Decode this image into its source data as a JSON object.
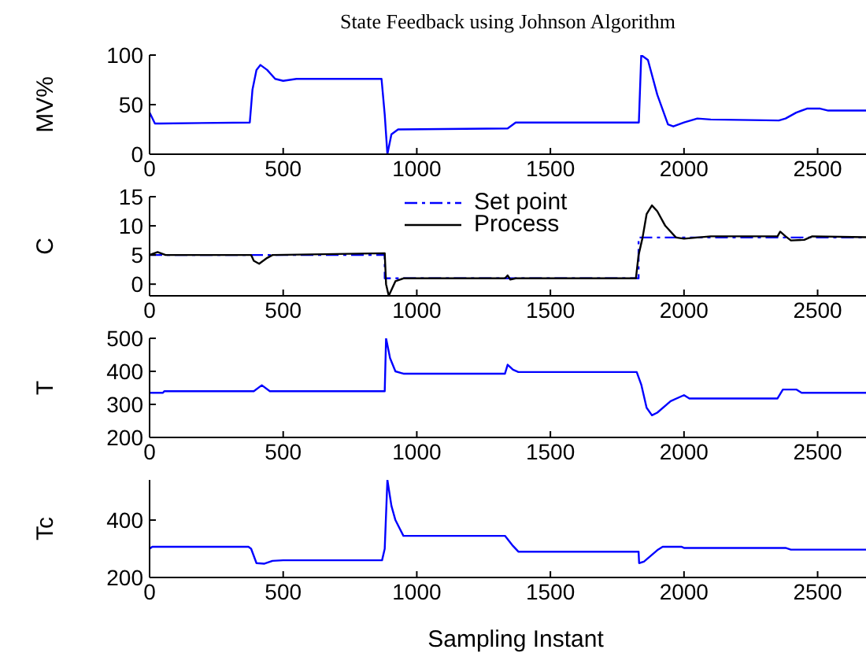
{
  "chart_data": [
    {
      "type": "line",
      "title": "State Feedback using Johnson Algorithm",
      "ylabel": "MV%",
      "xlim": [
        0,
        2740
      ],
      "xticks": [
        0,
        500,
        1000,
        1500,
        2000,
        2500
      ],
      "ylim": [
        0,
        100
      ],
      "yticks": [
        0,
        50,
        100
      ],
      "legend": false,
      "series": [
        {
          "color": "#0000ff",
          "x": [
            0,
            20,
            40,
            375,
            385,
            400,
            415,
            440,
            470,
            500,
            550,
            868,
            880,
            890,
            905,
            930,
            1340,
            1370,
            1831,
            1840,
            1865,
            1900,
            1940,
            1960,
            2000,
            2050,
            2100,
            2355,
            2380,
            2420,
            2460,
            2510,
            2540,
            2740
          ],
          "values": [
            42,
            31,
            31,
            32,
            65,
            85,
            90,
            85,
            76,
            74,
            76,
            76,
            40,
            0,
            20,
            25,
            26,
            32,
            32,
            100,
            95,
            60,
            30,
            28,
            32,
            36,
            35,
            34,
            36,
            42,
            46,
            46,
            44,
            44
          ]
        }
      ]
    },
    {
      "type": "line",
      "ylabel": "C",
      "xlim": [
        0,
        2740
      ],
      "xticks": [
        0,
        500,
        1000,
        1500,
        2000,
        2500
      ],
      "ylim": [
        -2,
        15
      ],
      "yticks": [
        0,
        5,
        10,
        15
      ],
      "legend": "top",
      "series": [
        {
          "name": "Set point",
          "color": "#0000ff",
          "line_style": "dashdot",
          "x": [
            0,
            880,
            880,
            1830,
            1830,
            2740
          ],
          "values": [
            5,
            5,
            1,
            1,
            8,
            8
          ]
        },
        {
          "name": "Process",
          "color": "#000000",
          "line_style": "solid",
          "x": [
            0,
            30,
            60,
            380,
            390,
            410,
            440,
            460,
            880,
            885,
            895,
            920,
            950,
            1330,
            1340,
            1350,
            1370,
            1820,
            1830,
            1845,
            1860,
            1880,
            1900,
            1930,
            1970,
            2000,
            2100,
            2350,
            2360,
            2380,
            2400,
            2450,
            2480,
            2740
          ],
          "values": [
            5,
            5.5,
            5,
            5,
            4,
            3.5,
            4.5,
            5,
            5.3,
            0,
            -2,
            0.5,
            1,
            1,
            1.5,
            0.8,
            1,
            1,
            5,
            8,
            12,
            13.5,
            12.5,
            10,
            8,
            7.8,
            8.2,
            8.2,
            9,
            8.2,
            7.5,
            7.6,
            8.2,
            8
          ]
        }
      ]
    },
    {
      "type": "line",
      "ylabel": "T",
      "xlim": [
        0,
        2740
      ],
      "xticks": [
        0,
        500,
        1000,
        1500,
        2000,
        2500
      ],
      "ylim": [
        200,
        500
      ],
      "yticks": [
        200,
        300,
        400,
        500
      ],
      "legend": false,
      "series": [
        {
          "color": "#0000ff",
          "x": [
            0,
            50,
            55,
            390,
            420,
            450,
            880,
            885,
            900,
            920,
            950,
            1330,
            1340,
            1360,
            1380,
            1823,
            1840,
            1860,
            1880,
            1900,
            1950,
            2000,
            2020,
            2350,
            2370,
            2420,
            2440,
            2740
          ],
          "values": [
            335,
            335,
            340,
            340,
            358,
            340,
            340,
            500,
            440,
            400,
            393,
            393,
            420,
            405,
            398,
            398,
            360,
            290,
            267,
            275,
            310,
            328,
            318,
            318,
            345,
            345,
            335,
            335
          ]
        }
      ]
    },
    {
      "type": "line",
      "ylabel": "Tc",
      "xlabel": "Sampling Instant",
      "xlim": [
        0,
        2740
      ],
      "xticks": [
        0,
        500,
        1000,
        1500,
        2000,
        2500
      ],
      "ylim": [
        200,
        540
      ],
      "yticks": [
        200,
        400
      ],
      "legend": false,
      "series": [
        {
          "color": "#0000ff",
          "x": [
            0,
            10,
            370,
            380,
            400,
            430,
            460,
            500,
            870,
            880,
            890,
            905,
            920,
            950,
            1330,
            1360,
            1380,
            1830,
            1832,
            1850,
            1900,
            1920,
            1990,
            2000,
            2380,
            2400,
            2740
          ],
          "values": [
            300,
            307,
            307,
            300,
            250,
            248,
            258,
            260,
            260,
            300,
            540,
            450,
            400,
            345,
            345,
            310,
            290,
            290,
            250,
            255,
            295,
            307,
            307,
            303,
            303,
            297,
            297
          ]
        }
      ]
    }
  ]
}
